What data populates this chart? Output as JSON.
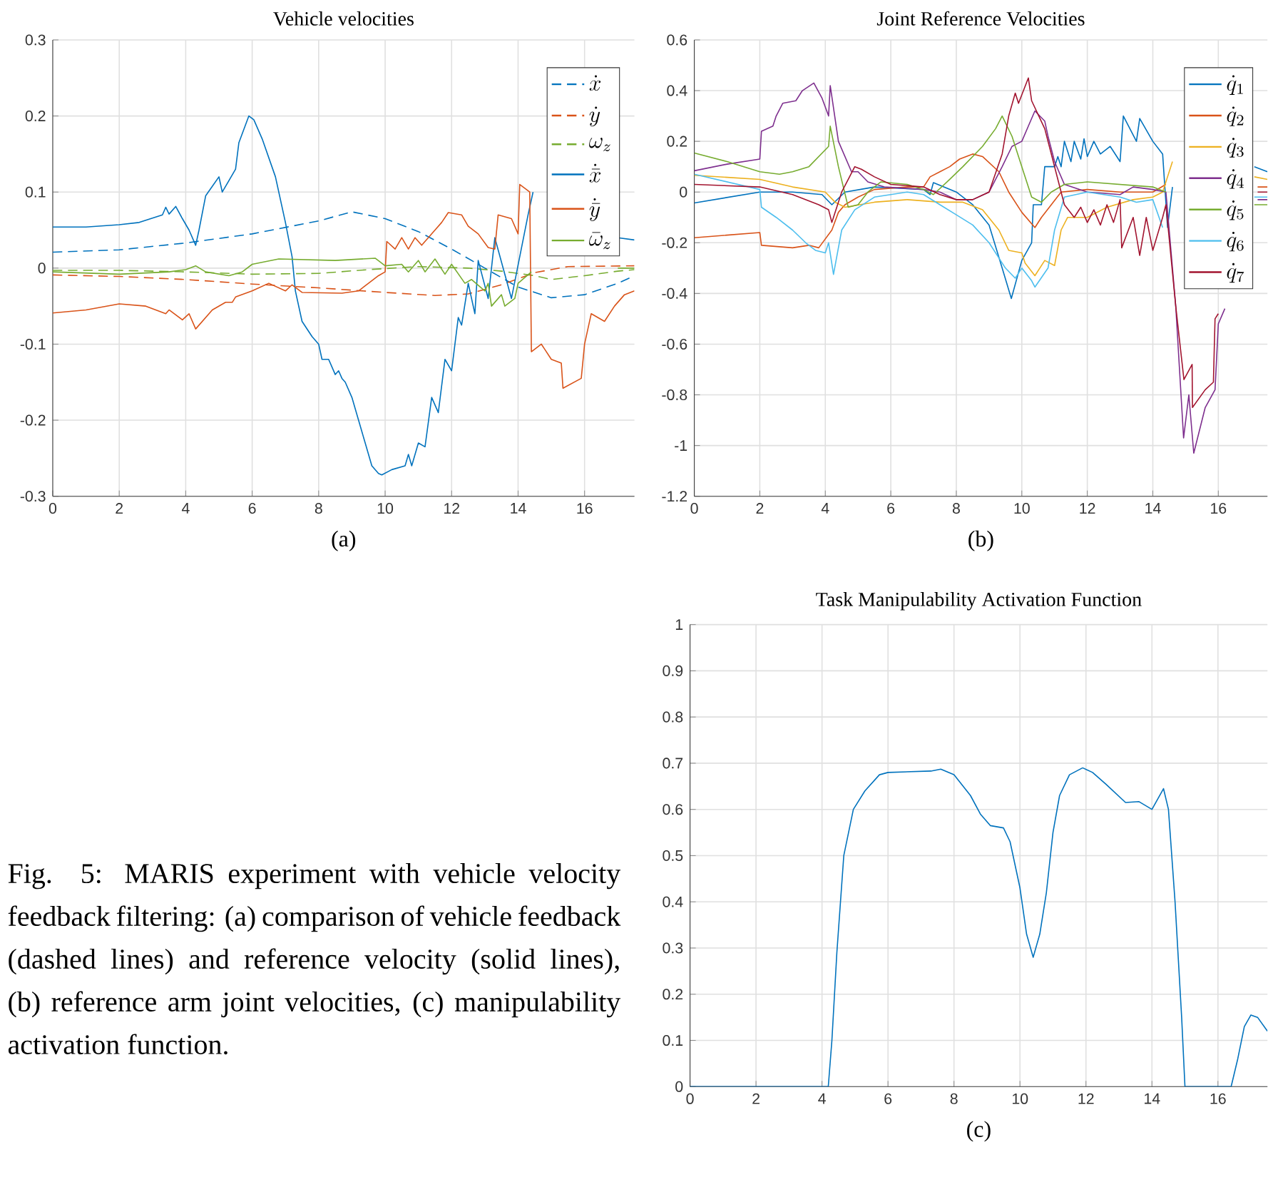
{
  "chart_data": [
    {
      "type": "line",
      "title": "Vehicle velocities",
      "xlabel": "(a)",
      "xlim": [
        0,
        17.5
      ],
      "ylim": [
        -0.3,
        0.3
      ],
      "xticks": [
        0,
        2,
        4,
        6,
        8,
        10,
        12,
        14,
        16
      ],
      "yticks": [
        -0.3,
        -0.2,
        -0.1,
        0,
        0.1,
        0.2,
        0.3
      ],
      "grid": true,
      "legend": "top right",
      "series": [
        {
          "name": "\\dot{x}",
          "color": "#0072bd",
          "line_style": "dashed",
          "x": [
            0,
            2,
            4,
            6,
            8,
            9,
            10,
            11,
            12,
            13,
            14,
            15,
            16,
            17,
            17.5
          ],
          "values": [
            0.021,
            0.024,
            0.033,
            0.045,
            0.062,
            0.074,
            0.065,
            0.048,
            0.025,
            0.0,
            -0.025,
            -0.039,
            -0.035,
            -0.02,
            -0.01
          ]
        },
        {
          "name": "\\dot{y}",
          "color": "#d95319",
          "line_style": "dashed",
          "x": [
            0,
            2,
            4,
            6,
            8,
            10,
            11.5,
            12.5,
            13.5,
            14.5,
            15.5,
            17.5
          ],
          "values": [
            -0.009,
            -0.011,
            -0.015,
            -0.021,
            -0.026,
            -0.032,
            -0.036,
            -0.034,
            -0.022,
            -0.006,
            0.002,
            0.003
          ]
        },
        {
          "name": "\\omega_z",
          "color": "#77ac30",
          "line_style": "dashed",
          "x": [
            0,
            2,
            4,
            6,
            8,
            9.5,
            11,
            12.5,
            13.5,
            14.5,
            15,
            16,
            17,
            17.5
          ],
          "values": [
            -0.003,
            -0.003,
            -0.005,
            -0.008,
            -0.007,
            -0.002,
            0.002,
            0.0,
            -0.004,
            -0.01,
            -0.015,
            -0.01,
            -0.004,
            -0.002
          ]
        },
        {
          "name": "\\dot{\\bar{x}}",
          "color": "#0072bd",
          "line_style": "solid",
          "x": [
            0,
            1,
            2,
            2.6,
            3.3,
            3.4,
            3.5,
            3.7,
            3.9,
            4.1,
            4.3,
            4.4,
            4.6,
            5.0,
            5.1,
            5.5,
            5.6,
            5.9,
            6.05,
            6.3,
            6.7,
            7.0,
            7.2,
            7.3,
            7.5,
            7.8,
            8.0,
            8.1,
            8.3,
            8.5,
            8.6,
            8.7,
            8.8,
            9.0,
            9.2,
            9.4,
            9.6,
            9.8,
            9.9,
            10.2,
            10.6,
            10.7,
            10.8,
            11.0,
            11.2,
            11.4,
            11.6,
            11.8,
            12.0,
            12.2,
            12.3,
            12.5,
            12.7,
            12.8,
            13.1,
            13.3,
            13.8,
            14.3,
            14.45,
            15.5,
            17.0,
            17.5
          ],
          "values": [
            0.054,
            0.054,
            0.057,
            0.06,
            0.07,
            0.08,
            0.071,
            0.081,
            0.065,
            0.05,
            0.03,
            0.05,
            0.095,
            0.12,
            0.1,
            0.13,
            0.165,
            0.2,
            0.195,
            0.17,
            0.12,
            0.06,
            0.015,
            -0.03,
            -0.07,
            -0.09,
            -0.1,
            -0.12,
            -0.12,
            -0.14,
            -0.135,
            -0.145,
            -0.15,
            -0.17,
            -0.2,
            -0.23,
            -0.26,
            -0.27,
            -0.272,
            -0.265,
            -0.26,
            -0.245,
            -0.26,
            -0.23,
            -0.235,
            -0.17,
            -0.19,
            -0.12,
            -0.135,
            -0.065,
            -0.075,
            -0.02,
            -0.06,
            0.01,
            -0.04,
            0.04,
            -0.04,
            0.07,
            0.1,
            null,
            0.04,
            0.037
          ]
        },
        {
          "name": "\\dot{\\bar{y}}",
          "color": "#d95319",
          "line_style": "solid",
          "x": [
            0,
            1,
            2,
            2.8,
            3.4,
            3.5,
            3.9,
            4.1,
            4.3,
            4.5,
            4.8,
            5.2,
            5.4,
            5.5,
            6.0,
            6.5,
            7.0,
            7.2,
            7.5,
            8.7,
            9.2,
            9.5,
            9.8,
            10.0,
            10.05,
            10.3,
            10.5,
            10.7,
            10.9,
            11.1,
            11.5,
            11.7,
            11.9,
            12.3,
            12.5,
            12.8,
            13.1,
            13.3,
            13.4,
            13.8,
            14.0,
            14.05,
            14.35,
            14.4,
            14.7,
            15.0,
            15.3,
            15.35,
            15.9,
            16.0,
            16.2,
            16.6,
            16.9,
            17.2,
            17.5
          ],
          "values": [
            -0.059,
            -0.055,
            -0.047,
            -0.05,
            -0.06,
            -0.055,
            -0.068,
            -0.06,
            -0.08,
            -0.07,
            -0.055,
            -0.045,
            -0.045,
            -0.038,
            -0.03,
            -0.02,
            -0.03,
            -0.022,
            -0.032,
            -0.033,
            -0.03,
            -0.02,
            -0.01,
            -0.005,
            0.035,
            0.025,
            0.04,
            0.025,
            0.04,
            0.03,
            0.05,
            0.06,
            0.073,
            0.07,
            0.055,
            0.045,
            0.027,
            0.025,
            0.07,
            0.065,
            0.045,
            0.11,
            0.1,
            -0.11,
            -0.1,
            -0.12,
            -0.125,
            -0.158,
            -0.145,
            -0.1,
            -0.06,
            -0.07,
            -0.05,
            -0.035,
            -0.03
          ]
        },
        {
          "name": "\\bar{\\omega}_z",
          "color": "#77ac30",
          "line_style": "solid",
          "x": [
            0,
            2,
            3.5,
            4.0,
            4.3,
            4.6,
            5.3,
            5.7,
            6.0,
            6.8,
            8.5,
            9.7,
            10.0,
            10.5,
            10.7,
            11.0,
            11.2,
            11.5,
            11.8,
            12.0,
            12.4,
            12.6,
            13.0,
            13.1,
            13.2,
            13.5,
            13.6,
            13.9,
            14.0,
            14.4,
            15.5,
            17.0,
            17.5
          ],
          "values": [
            -0.005,
            -0.008,
            -0.005,
            -0.002,
            0.003,
            -0.005,
            -0.01,
            -0.005,
            0.005,
            0.012,
            0.01,
            0.013,
            0.003,
            0.005,
            -0.005,
            0.01,
            -0.005,
            0.012,
            -0.008,
            0.005,
            -0.02,
            -0.015,
            -0.03,
            -0.02,
            -0.05,
            -0.035,
            -0.05,
            -0.04,
            -0.02,
            -0.005,
            null,
            0.0,
            0.0
          ]
        }
      ]
    },
    {
      "type": "line",
      "title": "Joint Reference Velocities",
      "xlabel": "(b)",
      "xlim": [
        0,
        17.5
      ],
      "ylim": [
        -1.2,
        0.6
      ],
      "xticks": [
        0,
        2,
        4,
        6,
        8,
        10,
        12,
        14,
        16
      ],
      "yticks": [
        -1.2,
        -1,
        -0.8,
        -0.6,
        -0.4,
        -0.2,
        0,
        0.2,
        0.4,
        0.6
      ],
      "grid": true,
      "legend": "top right",
      "series": [
        {
          "name": "\\dot{q}_1",
          "color": "#0072bd",
          "x": [
            0,
            2,
            3,
            3.9,
            4.2,
            4.6,
            5.5,
            7.0,
            7.2,
            7.3,
            8.0,
            8.5,
            9.0,
            9.4,
            9.68,
            10.0,
            10.3,
            10.35,
            10.6,
            10.7,
            11.0,
            11.1,
            11.2,
            11.3,
            11.5,
            11.6,
            11.8,
            11.9,
            12.0,
            12.2,
            12.4,
            12.7,
            13.0,
            13.1,
            13.5,
            13.6,
            14.0,
            14.3,
            14.45,
            14.6,
            16.0,
            17.1,
            17.5
          ],
          "values": [
            -0.043,
            0.0,
            0.0,
            -0.01,
            -0.05,
            0.0,
            0.02,
            0.01,
            -0.01,
            0.037,
            0.0,
            -0.05,
            -0.13,
            -0.3,
            -0.42,
            -0.27,
            -0.2,
            -0.05,
            -0.05,
            0.1,
            0.1,
            0.14,
            0.1,
            0.2,
            0.12,
            0.2,
            0.13,
            0.21,
            0.14,
            0.2,
            0.15,
            0.18,
            0.12,
            0.3,
            0.2,
            0.29,
            0.2,
            0.15,
            -0.14,
            0.02,
            null,
            0.1,
            0.08
          ]
        },
        {
          "name": "\\dot{q}_2",
          "color": "#d95319",
          "x": [
            0,
            2,
            2.05,
            3,
            3.5,
            3.8,
            4.2,
            4.4,
            4.6,
            5.0,
            5.5,
            6.5,
            7.0,
            7.2,
            7.5,
            7.8,
            8.1,
            8.5,
            8.8,
            9.3,
            9.6,
            10.0,
            10.4,
            10.6,
            10.9,
            11.2,
            12,
            13,
            14,
            14.4,
            16.0,
            17.2,
            17.5
          ],
          "values": [
            -0.18,
            -0.16,
            -0.21,
            -0.22,
            -0.21,
            -0.22,
            -0.15,
            -0.08,
            -0.05,
            -0.02,
            0.01,
            0.02,
            0.02,
            0.06,
            0.08,
            0.1,
            0.13,
            0.15,
            0.14,
            0.08,
            0.0,
            -0.08,
            -0.14,
            -0.1,
            -0.05,
            0.0,
            0.01,
            0.0,
            0.0,
            0.03,
            null,
            0.02,
            0.02
          ]
        },
        {
          "name": "\\dot{q}_3",
          "color": "#edb120",
          "x": [
            0,
            2,
            3,
            4.0,
            4.3,
            4.6,
            5.5,
            6.5,
            7.5,
            8.2,
            8.8,
            9.3,
            9.6,
            10.0,
            10.1,
            10.4,
            10.7,
            11.0,
            11.2,
            11.4,
            12,
            12.6,
            13.4,
            14.0,
            14.3,
            14.6,
            16.0,
            17.1,
            17.5
          ],
          "values": [
            0.066,
            0.05,
            0.02,
            0.0,
            -0.04,
            -0.06,
            -0.04,
            -0.03,
            -0.04,
            -0.04,
            -0.07,
            -0.15,
            -0.23,
            -0.24,
            -0.28,
            -0.33,
            -0.27,
            -0.29,
            -0.15,
            -0.1,
            -0.1,
            -0.06,
            -0.03,
            -0.02,
            0.0,
            0.12,
            null,
            0.06,
            0.05
          ]
        },
        {
          "name": "\\dot{q}_4",
          "color": "#7e2f8e",
          "x": [
            0,
            1,
            2,
            2.05,
            2.4,
            2.5,
            2.7,
            3.1,
            3.3,
            3.65,
            3.9,
            4.1,
            4.15,
            4.4,
            4.8,
            5.0,
            5.3,
            5.8,
            7,
            7.5,
            8.0,
            8.5,
            9.0,
            9.4,
            9.7,
            10.0,
            10.2,
            10.4,
            10.7,
            10.8,
            11.0,
            11.3,
            12,
            13,
            13.4,
            14,
            14.4,
            14.7,
            14.94,
            15.1,
            15.25,
            15.6,
            15.9,
            16.0,
            16.2,
            16.6,
            17.2,
            17.5
          ],
          "values": [
            0.084,
            0.11,
            0.13,
            0.24,
            0.26,
            0.3,
            0.35,
            0.36,
            0.4,
            0.43,
            0.37,
            0.3,
            0.42,
            0.2,
            0.08,
            0.08,
            0.04,
            0.02,
            0.01,
            0.0,
            -0.03,
            -0.03,
            0.0,
            0.1,
            0.18,
            0.2,
            0.26,
            0.32,
            0.28,
            0.22,
            0.12,
            0.03,
            0.0,
            -0.01,
            0.02,
            0.01,
            0.0,
            -0.45,
            -0.97,
            -0.8,
            -1.03,
            -0.85,
            -0.78,
            -0.52,
            -0.46,
            null,
            -0.03,
            -0.03
          ]
        },
        {
          "name": "\\dot{q}_5",
          "color": "#77ac30",
          "x": [
            0,
            1,
            2,
            2.6,
            3,
            3.5,
            4.1,
            4.15,
            4.4,
            4.7,
            5.0,
            5.3,
            5.7,
            6.5,
            7.0,
            7.3,
            7.8,
            8.2,
            8.8,
            9.2,
            9.4,
            9.7,
            10.0,
            10.3,
            10.6,
            10.9,
            11.3,
            12,
            13,
            14,
            14.4,
            16.0,
            17.1,
            17.5
          ],
          "values": [
            0.154,
            0.12,
            0.08,
            0.07,
            0.08,
            0.1,
            0.18,
            0.26,
            0.1,
            -0.06,
            -0.05,
            0.0,
            0.04,
            0.03,
            0.01,
            -0.01,
            0.05,
            0.1,
            0.18,
            0.25,
            0.3,
            0.22,
            0.1,
            -0.02,
            -0.04,
            0.0,
            0.03,
            0.04,
            0.03,
            0.02,
            0.0,
            null,
            -0.05,
            -0.05
          ]
        },
        {
          "name": "\\dot{q}_6",
          "color": "#4dbeee",
          "x": [
            0,
            2,
            2.05,
            2.5,
            3.0,
            3.4,
            3.7,
            4.0,
            4.1,
            4.25,
            4.5,
            4.9,
            5.5,
            6.5,
            7.0,
            7.5,
            8.0,
            8.5,
            9.0,
            9.5,
            9.8,
            10.0,
            10.3,
            10.4,
            10.8,
            11.0,
            11.3,
            12,
            13,
            13.5,
            14.0,
            14.3,
            16.0,
            17.1,
            17.5
          ],
          "values": [
            0.07,
            0.01,
            -0.06,
            -0.1,
            -0.15,
            -0.2,
            -0.23,
            -0.24,
            -0.2,
            -0.325,
            -0.15,
            -0.07,
            -0.02,
            0.0,
            -0.01,
            -0.05,
            -0.09,
            -0.13,
            -0.2,
            -0.3,
            -0.34,
            -0.3,
            -0.35,
            -0.375,
            -0.3,
            -0.15,
            -0.02,
            0.0,
            -0.02,
            -0.04,
            -0.03,
            -0.14,
            null,
            -0.02,
            -0.02
          ]
        },
        {
          "name": "\\dot{q}_7",
          "color": "#a2142f",
          "x": [
            0,
            2,
            3,
            3.8,
            4.1,
            4.2,
            4.5,
            4.9,
            5.1,
            5.5,
            6.0,
            7.0,
            7.5,
            8.0,
            8.5,
            9.0,
            9.4,
            9.6,
            9.8,
            9.9,
            10.2,
            10.3,
            10.7,
            11.0,
            11.3,
            11.6,
            11.8,
            12.0,
            12.2,
            12.4,
            12.6,
            12.8,
            13.0,
            13.05,
            13.4,
            13.6,
            13.8,
            14.0,
            14.3,
            14.4,
            14.7,
            14.95,
            15.2,
            15.21,
            15.6,
            15.85,
            15.9,
            16.0,
            16.6,
            17.2,
            17.5
          ],
          "values": [
            0.03,
            0.02,
            -0.01,
            -0.05,
            -0.07,
            -0.12,
            0.0,
            0.1,
            0.09,
            0.06,
            0.03,
            0.02,
            -0.01,
            -0.03,
            -0.03,
            0.0,
            0.15,
            0.3,
            0.39,
            0.35,
            0.45,
            0.36,
            0.25,
            0.1,
            -0.05,
            -0.1,
            -0.06,
            -0.12,
            -0.07,
            -0.13,
            -0.05,
            -0.12,
            -0.03,
            -0.22,
            -0.1,
            -0.25,
            -0.1,
            -0.23,
            -0.1,
            -0.05,
            -0.45,
            -0.74,
            -0.68,
            -0.85,
            -0.78,
            -0.75,
            -0.5,
            -0.48,
            null,
            0.0,
            0.0
          ]
        }
      ]
    },
    {
      "type": "line",
      "title": "Task Manipulability Activation Function",
      "xlabel": "(c)",
      "xlim": [
        0,
        17.5
      ],
      "ylim": [
        0,
        1
      ],
      "xticks": [
        0,
        2,
        4,
        6,
        8,
        10,
        12,
        14,
        16
      ],
      "yticks": [
        0,
        0.1,
        0.2,
        0.3,
        0.4,
        0.5,
        0.6,
        0.7,
        0.8,
        0.9,
        1
      ],
      "grid": true,
      "color": "#0072bd",
      "x": [
        0,
        4.19,
        4.3,
        4.45,
        4.66,
        4.95,
        5.3,
        5.74,
        6.0,
        7.3,
        7.6,
        8.0,
        8.5,
        8.8,
        9.1,
        9.5,
        9.7,
        10.0,
        10.2,
        10.4,
        10.6,
        10.8,
        11.0,
        11.2,
        11.5,
        11.9,
        12.2,
        12.6,
        13.2,
        13.6,
        14.0,
        14.35,
        14.5,
        14.7,
        14.9,
        15.0,
        16.4,
        16.6,
        16.8,
        17.0,
        17.2,
        17.5
      ],
      "values": [
        0,
        0,
        0.1,
        0.29,
        0.5,
        0.6,
        0.64,
        0.675,
        0.68,
        0.683,
        0.687,
        0.675,
        0.63,
        0.59,
        0.565,
        0.56,
        0.53,
        0.43,
        0.33,
        0.28,
        0.33,
        0.42,
        0.55,
        0.63,
        0.675,
        0.69,
        0.68,
        0.655,
        0.615,
        0.617,
        0.6,
        0.645,
        0.6,
        0.4,
        0.15,
        0.0,
        0.0,
        0.06,
        0.13,
        0.155,
        0.15,
        0.12
      ],
      "annotations": [
        "Fig. 5: MARIS experiment with vehicle velocity feedback filtering: (a) comparison of vehicle feedback (dashed lines) and reference velocity (solid lines), (b) reference arm joint velocities, (c) manipulability activation function."
      ]
    }
  ]
}
